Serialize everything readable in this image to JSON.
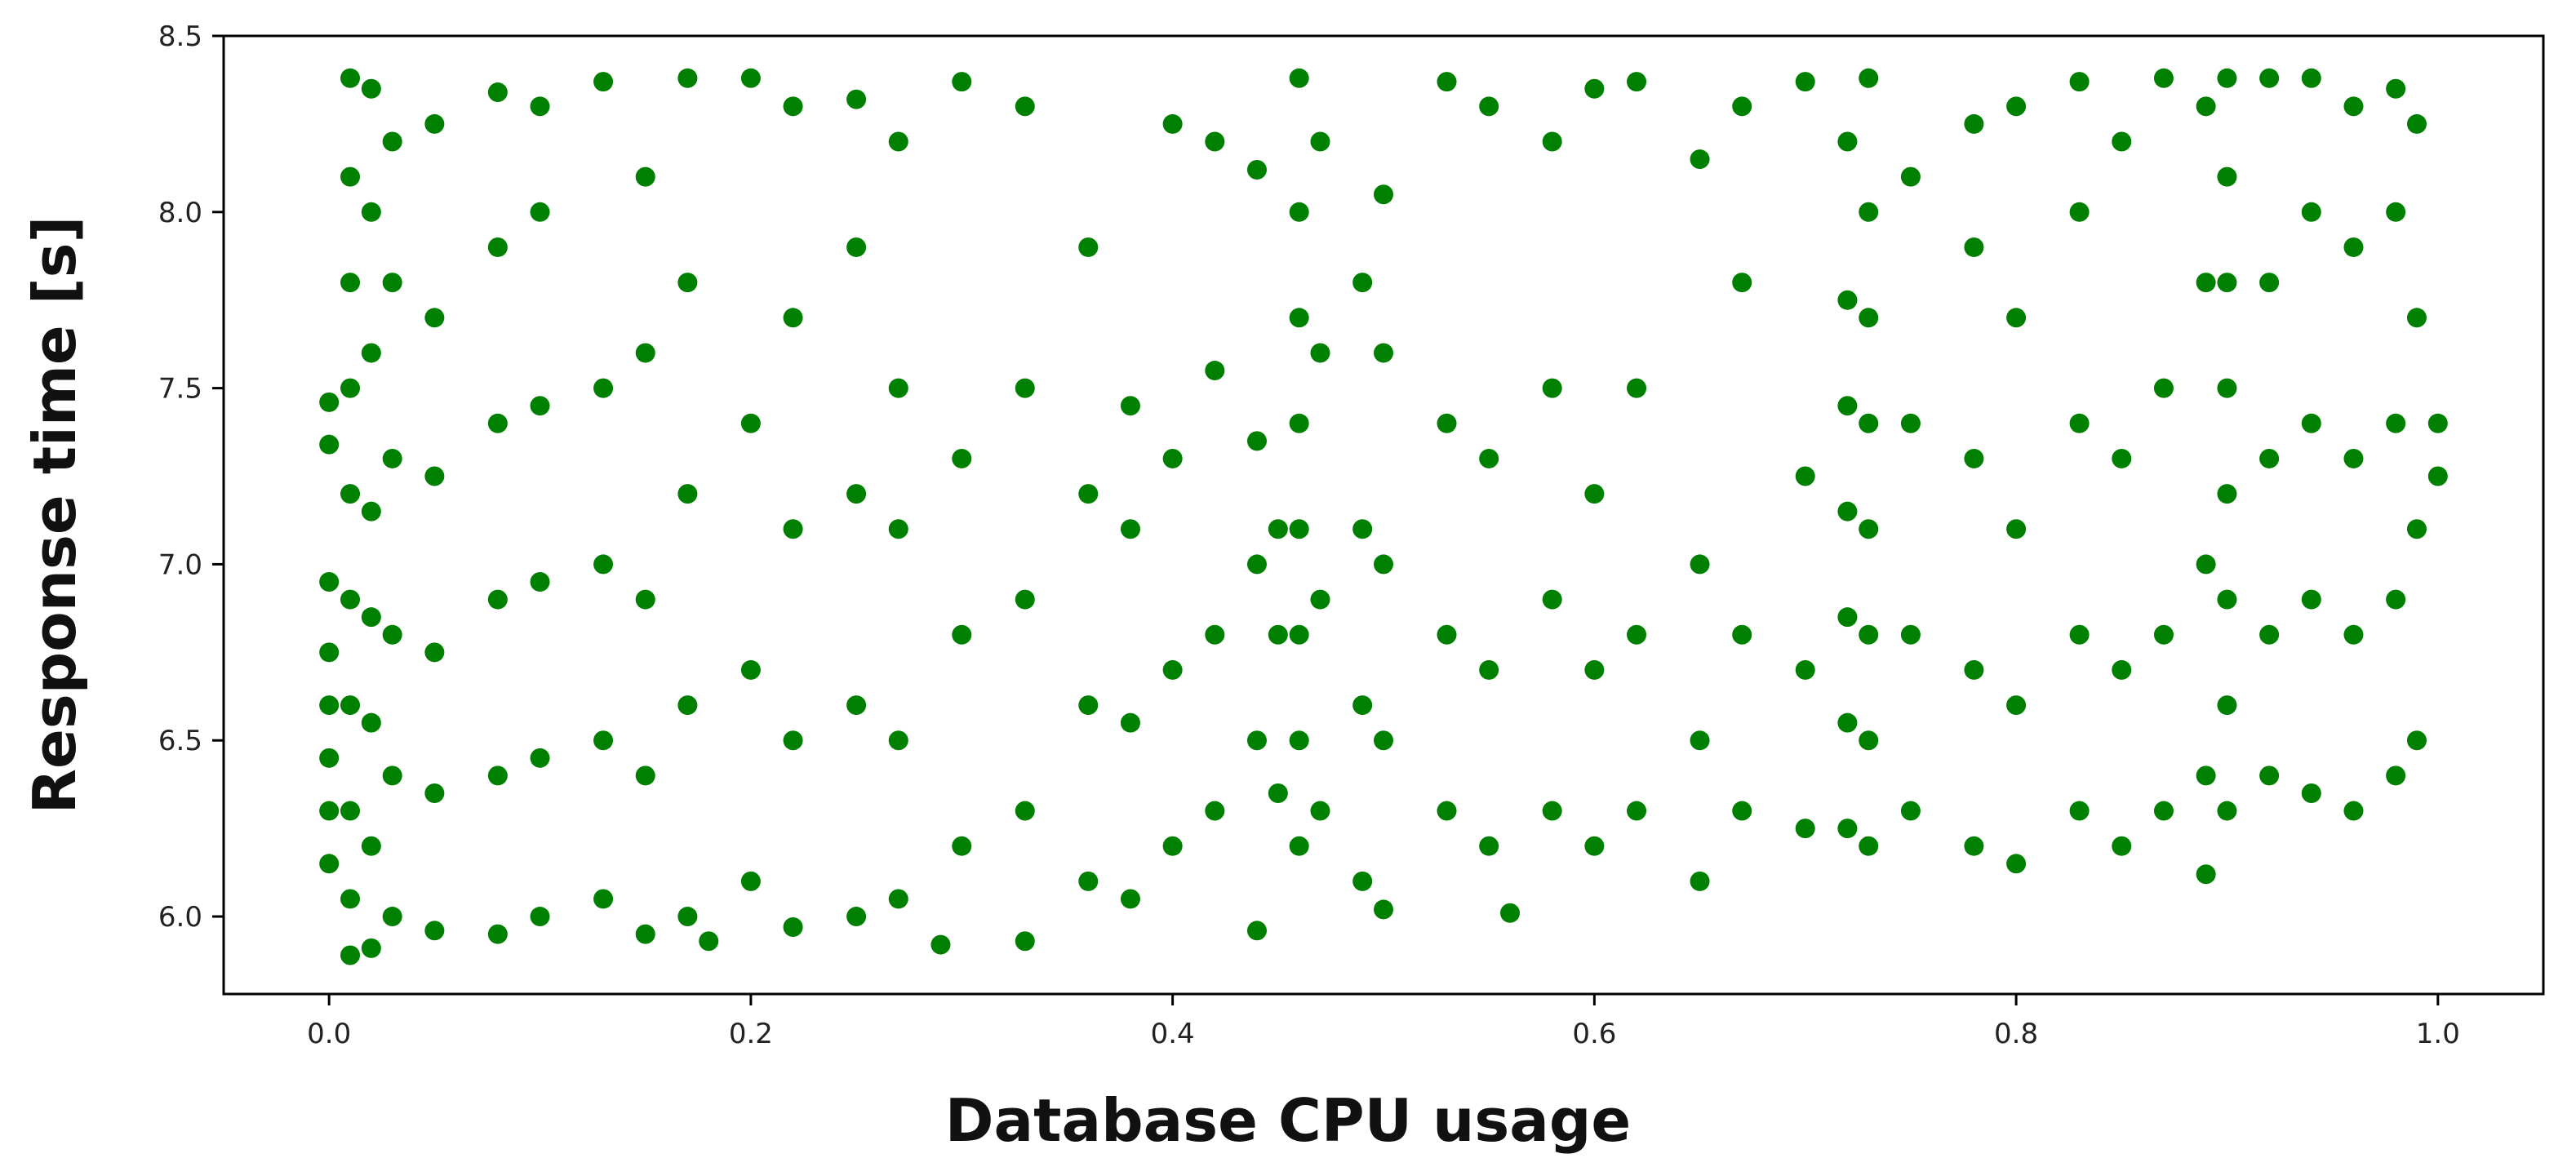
{
  "chart_data": {
    "type": "scatter",
    "title": "",
    "xlabel": "Database CPU usage",
    "ylabel": "Response time [s]",
    "xlim": [
      -0.05,
      1.05
    ],
    "ylim": [
      5.78,
      8.5
    ],
    "xticks": [
      0.0,
      0.2,
      0.4,
      0.6,
      0.8,
      1.0
    ],
    "xtick_labels": [
      "0.0",
      "0.2",
      "0.4",
      "0.6",
      "0.8",
      "1.0"
    ],
    "yticks": [
      6.0,
      6.5,
      7.0,
      7.5,
      8.0,
      8.5
    ],
    "ytick_labels": [
      "6.0",
      "6.5",
      "7.0",
      "7.5",
      "8.0",
      "8.5"
    ],
    "grid": false,
    "legend": "none",
    "marker_color": "#008000",
    "series": [
      {
        "points": [
          [
            0.0,
            6.15
          ],
          [
            0.0,
            6.3
          ],
          [
            0.0,
            6.45
          ],
          [
            0.0,
            6.6
          ],
          [
            0.0,
            6.75
          ],
          [
            0.0,
            6.95
          ],
          [
            0.0,
            7.34
          ],
          [
            0.0,
            7.46
          ],
          [
            0.01,
            5.89
          ],
          [
            0.01,
            6.05
          ],
          [
            0.01,
            6.3
          ],
          [
            0.01,
            6.6
          ],
          [
            0.01,
            6.9
          ],
          [
            0.01,
            7.2
          ],
          [
            0.01,
            7.5
          ],
          [
            0.01,
            7.8
          ],
          [
            0.01,
            8.1
          ],
          [
            0.01,
            8.38
          ],
          [
            0.02,
            5.91
          ],
          [
            0.02,
            6.2
          ],
          [
            0.02,
            6.55
          ],
          [
            0.02,
            6.85
          ],
          [
            0.02,
            7.15
          ],
          [
            0.02,
            7.6
          ],
          [
            0.02,
            8.0
          ],
          [
            0.02,
            8.35
          ],
          [
            0.03,
            6.0
          ],
          [
            0.03,
            6.4
          ],
          [
            0.03,
            6.8
          ],
          [
            0.03,
            7.3
          ],
          [
            0.03,
            7.8
          ],
          [
            0.03,
            8.2
          ],
          [
            0.05,
            5.96
          ],
          [
            0.05,
            6.35
          ],
          [
            0.05,
            6.75
          ],
          [
            0.05,
            7.25
          ],
          [
            0.05,
            7.7
          ],
          [
            0.05,
            8.25
          ],
          [
            0.08,
            5.95
          ],
          [
            0.08,
            6.4
          ],
          [
            0.08,
            6.9
          ],
          [
            0.08,
            7.4
          ],
          [
            0.08,
            7.9
          ],
          [
            0.08,
            8.34
          ],
          [
            0.1,
            6.0
          ],
          [
            0.1,
            6.45
          ],
          [
            0.1,
            6.95
          ],
          [
            0.1,
            7.45
          ],
          [
            0.1,
            8.0
          ],
          [
            0.1,
            8.3
          ],
          [
            0.13,
            6.05
          ],
          [
            0.13,
            6.5
          ],
          [
            0.13,
            7.0
          ],
          [
            0.13,
            7.5
          ],
          [
            0.13,
            8.37
          ],
          [
            0.15,
            5.95
          ],
          [
            0.15,
            6.4
          ],
          [
            0.15,
            6.9
          ],
          [
            0.15,
            7.6
          ],
          [
            0.15,
            8.1
          ],
          [
            0.17,
            6.0
          ],
          [
            0.17,
            6.6
          ],
          [
            0.17,
            7.2
          ],
          [
            0.17,
            7.8
          ],
          [
            0.17,
            8.38
          ],
          [
            0.18,
            5.93
          ],
          [
            0.2,
            6.1
          ],
          [
            0.2,
            6.7
          ],
          [
            0.2,
            7.4
          ],
          [
            0.2,
            8.38
          ],
          [
            0.22,
            5.97
          ],
          [
            0.22,
            6.5
          ],
          [
            0.22,
            7.1
          ],
          [
            0.22,
            7.7
          ],
          [
            0.22,
            8.3
          ],
          [
            0.25,
            6.0
          ],
          [
            0.25,
            6.6
          ],
          [
            0.25,
            7.2
          ],
          [
            0.25,
            7.9
          ],
          [
            0.25,
            8.32
          ],
          [
            0.27,
            6.05
          ],
          [
            0.27,
            6.5
          ],
          [
            0.27,
            7.1
          ],
          [
            0.27,
            7.5
          ],
          [
            0.27,
            8.2
          ],
          [
            0.29,
            5.92
          ],
          [
            0.3,
            6.2
          ],
          [
            0.3,
            6.8
          ],
          [
            0.3,
            7.3
          ],
          [
            0.3,
            8.37
          ],
          [
            0.33,
            5.93
          ],
          [
            0.33,
            6.3
          ],
          [
            0.33,
            6.9
          ],
          [
            0.33,
            7.5
          ],
          [
            0.33,
            8.3
          ],
          [
            0.36,
            6.1
          ],
          [
            0.36,
            6.6
          ],
          [
            0.36,
            7.2
          ],
          [
            0.36,
            7.9
          ],
          [
            0.38,
            6.05
          ],
          [
            0.38,
            6.55
          ],
          [
            0.38,
            7.1
          ],
          [
            0.38,
            7.45
          ],
          [
            0.4,
            6.2
          ],
          [
            0.4,
            6.7
          ],
          [
            0.4,
            7.3
          ],
          [
            0.4,
            8.25
          ],
          [
            0.42,
            6.3
          ],
          [
            0.42,
            6.8
          ],
          [
            0.42,
            7.55
          ],
          [
            0.42,
            8.2
          ],
          [
            0.44,
            5.96
          ],
          [
            0.44,
            6.5
          ],
          [
            0.44,
            7.0
          ],
          [
            0.44,
            7.35
          ],
          [
            0.44,
            8.12
          ],
          [
            0.45,
            6.35
          ],
          [
            0.45,
            6.8
          ],
          [
            0.45,
            7.1
          ],
          [
            0.46,
            6.2
          ],
          [
            0.46,
            6.5
          ],
          [
            0.46,
            6.8
          ],
          [
            0.46,
            7.1
          ],
          [
            0.46,
            7.4
          ],
          [
            0.46,
            7.7
          ],
          [
            0.46,
            8.0
          ],
          [
            0.46,
            8.38
          ],
          [
            0.47,
            6.3
          ],
          [
            0.47,
            6.9
          ],
          [
            0.47,
            7.6
          ],
          [
            0.47,
            8.2
          ],
          [
            0.49,
            6.1
          ],
          [
            0.49,
            6.6
          ],
          [
            0.49,
            7.1
          ],
          [
            0.49,
            7.8
          ],
          [
            0.5,
            6.02
          ],
          [
            0.5,
            6.5
          ],
          [
            0.5,
            7.0
          ],
          [
            0.5,
            7.6
          ],
          [
            0.5,
            8.05
          ],
          [
            0.53,
            6.3
          ],
          [
            0.53,
            6.8
          ],
          [
            0.53,
            7.4
          ],
          [
            0.53,
            8.37
          ],
          [
            0.55,
            6.2
          ],
          [
            0.55,
            6.7
          ],
          [
            0.55,
            7.3
          ],
          [
            0.55,
            8.3
          ],
          [
            0.56,
            6.01
          ],
          [
            0.58,
            6.3
          ],
          [
            0.58,
            6.9
          ],
          [
            0.58,
            7.5
          ],
          [
            0.58,
            8.2
          ],
          [
            0.6,
            6.2
          ],
          [
            0.6,
            6.7
          ],
          [
            0.6,
            7.2
          ],
          [
            0.6,
            8.35
          ],
          [
            0.62,
            6.3
          ],
          [
            0.62,
            6.8
          ],
          [
            0.62,
            7.5
          ],
          [
            0.62,
            8.37
          ],
          [
            0.65,
            6.1
          ],
          [
            0.65,
            6.5
          ],
          [
            0.65,
            7.0
          ],
          [
            0.65,
            8.15
          ],
          [
            0.67,
            6.3
          ],
          [
            0.67,
            6.8
          ],
          [
            0.67,
            7.8
          ],
          [
            0.67,
            8.3
          ],
          [
            0.7,
            6.25
          ],
          [
            0.7,
            6.7
          ],
          [
            0.7,
            7.25
          ],
          [
            0.7,
            8.37
          ],
          [
            0.72,
            6.25
          ],
          [
            0.72,
            6.55
          ],
          [
            0.72,
            6.85
          ],
          [
            0.72,
            7.15
          ],
          [
            0.72,
            7.45
          ],
          [
            0.72,
            7.75
          ],
          [
            0.72,
            8.2
          ],
          [
            0.73,
            6.2
          ],
          [
            0.73,
            6.5
          ],
          [
            0.73,
            6.8
          ],
          [
            0.73,
            7.1
          ],
          [
            0.73,
            7.4
          ],
          [
            0.73,
            7.7
          ],
          [
            0.73,
            8.0
          ],
          [
            0.73,
            8.38
          ],
          [
            0.75,
            6.3
          ],
          [
            0.75,
            6.8
          ],
          [
            0.75,
            7.4
          ],
          [
            0.75,
            8.1
          ],
          [
            0.78,
            6.2
          ],
          [
            0.78,
            6.7
          ],
          [
            0.78,
            7.3
          ],
          [
            0.78,
            7.9
          ],
          [
            0.78,
            8.25
          ],
          [
            0.8,
            6.15
          ],
          [
            0.8,
            6.6
          ],
          [
            0.8,
            7.1
          ],
          [
            0.8,
            7.7
          ],
          [
            0.8,
            8.3
          ],
          [
            0.83,
            6.3
          ],
          [
            0.83,
            6.8
          ],
          [
            0.83,
            7.4
          ],
          [
            0.83,
            8.0
          ],
          [
            0.83,
            8.37
          ],
          [
            0.85,
            6.2
          ],
          [
            0.85,
            6.7
          ],
          [
            0.85,
            7.3
          ],
          [
            0.85,
            8.2
          ],
          [
            0.87,
            6.3
          ],
          [
            0.87,
            6.8
          ],
          [
            0.87,
            7.5
          ],
          [
            0.87,
            8.38
          ],
          [
            0.89,
            6.12
          ],
          [
            0.89,
            6.4
          ],
          [
            0.89,
            7.0
          ],
          [
            0.89,
            7.8
          ],
          [
            0.89,
            8.3
          ],
          [
            0.9,
            6.3
          ],
          [
            0.9,
            6.6
          ],
          [
            0.9,
            6.9
          ],
          [
            0.9,
            7.2
          ],
          [
            0.9,
            7.5
          ],
          [
            0.9,
            7.8
          ],
          [
            0.9,
            8.1
          ],
          [
            0.9,
            8.38
          ],
          [
            0.92,
            6.4
          ],
          [
            0.92,
            6.8
          ],
          [
            0.92,
            7.3
          ],
          [
            0.92,
            7.8
          ],
          [
            0.92,
            8.38
          ],
          [
            0.94,
            6.35
          ],
          [
            0.94,
            6.9
          ],
          [
            0.94,
            7.4
          ],
          [
            0.94,
            8.0
          ],
          [
            0.94,
            8.38
          ],
          [
            0.96,
            6.3
          ],
          [
            0.96,
            6.8
          ],
          [
            0.96,
            7.3
          ],
          [
            0.96,
            7.9
          ],
          [
            0.96,
            8.3
          ],
          [
            0.98,
            6.4
          ],
          [
            0.98,
            6.9
          ],
          [
            0.98,
            7.4
          ],
          [
            0.98,
            8.0
          ],
          [
            0.98,
            8.35
          ],
          [
            0.99,
            6.5
          ],
          [
            0.99,
            7.1
          ],
          [
            0.99,
            7.7
          ],
          [
            0.99,
            8.25
          ],
          [
            1.0,
            7.25
          ],
          [
            1.0,
            7.4
          ]
        ]
      }
    ]
  }
}
